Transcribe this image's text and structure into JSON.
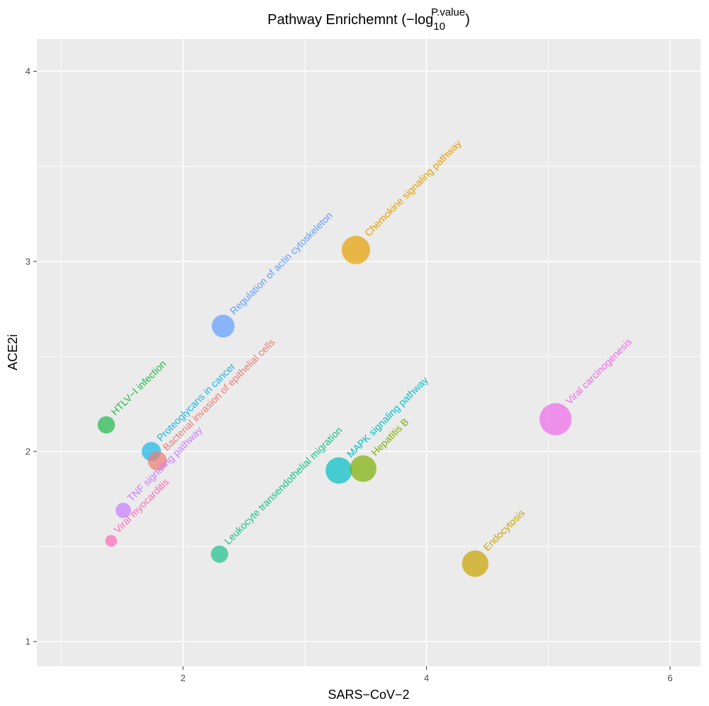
{
  "chart_data": {
    "type": "scatter",
    "title": {
      "main": "Pathway Enrichemnt (−log",
      "sub": "10",
      "sup": "P.value",
      "close": ")"
    },
    "xlabel": "SARS−CoV−2",
    "ylabel": "ACE2i",
    "xlim": [
      0.8,
      6.25
    ],
    "ylim": [
      0.87,
      4.17
    ],
    "x_ticks": [
      2,
      4,
      6
    ],
    "x_minor": [
      1,
      3,
      5
    ],
    "y_ticks": [
      1,
      2,
      3,
      4
    ],
    "y_minor": [
      1.5,
      2.5,
      3.5
    ],
    "x_tick_labels": [
      "2",
      "4",
      "6"
    ],
    "y_tick_labels": [
      "1",
      "2",
      "3",
      "4"
    ],
    "colors": {
      "panel": "#ebebeb",
      "grid": "#ffffff"
    },
    "points": [
      {
        "label": "Chemokine signaling pathway",
        "x": 3.42,
        "y": 3.06,
        "size": 10,
        "color": "#E69F00"
      },
      {
        "label": "Regulation of actin cytoskeleton",
        "x": 2.33,
        "y": 2.66,
        "size": 7,
        "color": "#619CFF"
      },
      {
        "label": "Viral carcinogenesis",
        "x": 5.06,
        "y": 2.17,
        "size": 12,
        "color": "#EE6AE8"
      },
      {
        "label": "HTLV−I infection",
        "x": 1.37,
        "y": 2.14,
        "size": 4,
        "color": "#1FB84A"
      },
      {
        "label": "Proteoglycans in cancer",
        "x": 1.74,
        "y": 2.0,
        "size": 5,
        "color": "#16B6E8"
      },
      {
        "label": "Bacterial invasion of epithelial cells",
        "x": 1.79,
        "y": 1.95,
        "size": 5,
        "color": "#F07A72"
      },
      {
        "label": "MAPK signaling pathway",
        "x": 3.28,
        "y": 1.9,
        "size": 9,
        "color": "#00BFC4"
      },
      {
        "label": "Hepatitis B",
        "x": 3.48,
        "y": 1.91,
        "size": 9,
        "color": "#7CAE00"
      },
      {
        "label": "TNF signaling pathway",
        "x": 1.51,
        "y": 1.69,
        "size": 3,
        "color": "#C77CFF"
      },
      {
        "label": "Viral myocarditis",
        "x": 1.41,
        "y": 1.53,
        "size": 1,
        "color": "#FF6AB5"
      },
      {
        "label": "Leukocyte transendothelial migration",
        "x": 2.3,
        "y": 1.46,
        "size": 4,
        "color": "#19C08A"
      },
      {
        "label": "Endocytosis",
        "x": 4.4,
        "y": 1.41,
        "size": 9,
        "color": "#C9A300"
      }
    ]
  }
}
